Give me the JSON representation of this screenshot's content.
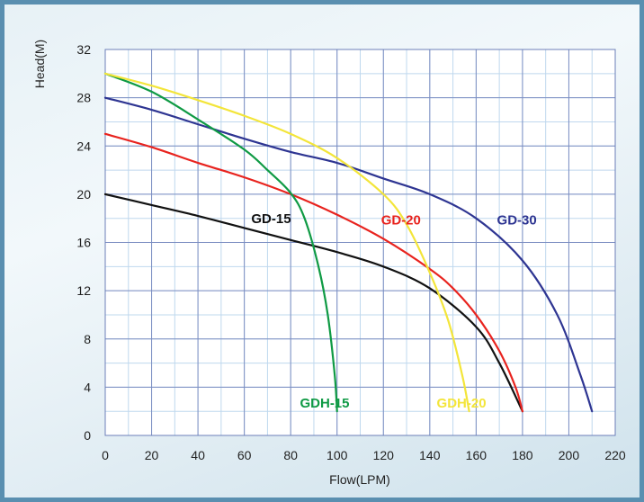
{
  "chart_data": {
    "type": "line",
    "title": "",
    "xlabel": "Flow(LPM)",
    "ylabel": "Head(M)",
    "xlim": [
      0,
      220
    ],
    "ylim": [
      0,
      32
    ],
    "x_ticks": [
      0,
      20,
      40,
      60,
      80,
      100,
      120,
      140,
      160,
      180,
      200,
      220
    ],
    "y_ticks": [
      0,
      4,
      8,
      12,
      16,
      20,
      24,
      28,
      32
    ],
    "x_minor_step": 10,
    "y_minor_step": 2,
    "grid": true,
    "legend": "labels on curves",
    "series": [
      {
        "name": "GD-15",
        "color": "#111111",
        "points": [
          [
            0,
            20
          ],
          [
            20,
            19.1
          ],
          [
            40,
            18.2
          ],
          [
            60,
            17.2
          ],
          [
            80,
            16.2
          ],
          [
            100,
            15.2
          ],
          [
            120,
            14
          ],
          [
            140,
            12.2
          ],
          [
            160,
            9
          ],
          [
            170,
            6
          ],
          [
            180,
            2
          ]
        ]
      },
      {
        "name": "GD-20",
        "color": "#e8231e",
        "points": [
          [
            0,
            25
          ],
          [
            20,
            23.9
          ],
          [
            40,
            22.6
          ],
          [
            60,
            21.4
          ],
          [
            80,
            20
          ],
          [
            100,
            18.3
          ],
          [
            120,
            16.3
          ],
          [
            140,
            13.8
          ],
          [
            150,
            12.2
          ],
          [
            160,
            10
          ],
          [
            170,
            7
          ],
          [
            177,
            4
          ],
          [
            180,
            2
          ]
        ]
      },
      {
        "name": "GD-30",
        "color": "#2e3592",
        "points": [
          [
            0,
            28
          ],
          [
            20,
            27
          ],
          [
            40,
            25.8
          ],
          [
            60,
            24.6
          ],
          [
            80,
            23.5
          ],
          [
            100,
            22.6
          ],
          [
            120,
            21.3
          ],
          [
            140,
            20
          ],
          [
            160,
            18
          ],
          [
            180,
            14.5
          ],
          [
            195,
            10
          ],
          [
            205,
            5
          ],
          [
            210,
            2
          ]
        ]
      },
      {
        "name": "GDH-15",
        "color": "#0f9a44",
        "points": [
          [
            0,
            30
          ],
          [
            20,
            28.5
          ],
          [
            40,
            26.2
          ],
          [
            60,
            23.7
          ],
          [
            70,
            22
          ],
          [
            80,
            20.1
          ],
          [
            86,
            18
          ],
          [
            92,
            14
          ],
          [
            96,
            10
          ],
          [
            99,
            5
          ],
          [
            100,
            2
          ]
        ]
      },
      {
        "name": "GDH-20",
        "color": "#f3e53a",
        "points": [
          [
            0,
            30
          ],
          [
            20,
            29
          ],
          [
            40,
            27.8
          ],
          [
            60,
            26.5
          ],
          [
            80,
            25
          ],
          [
            100,
            23
          ],
          [
            120,
            20
          ],
          [
            130,
            17.5
          ],
          [
            140,
            13.5
          ],
          [
            148,
            9.5
          ],
          [
            154,
            5
          ],
          [
            157,
            2
          ]
        ]
      }
    ],
    "labels": [
      {
        "text": "GD-15",
        "x": 63,
        "y": 17.6,
        "color": "#111111"
      },
      {
        "text": "GD-20",
        "x": 119,
        "y": 17.5,
        "color": "#e8231e"
      },
      {
        "text": "GD-30",
        "x": 169,
        "y": 17.5,
        "color": "#2e3592"
      },
      {
        "text": "GDH-15",
        "x": 84,
        "y": 2.3,
        "color": "#0f9a44"
      },
      {
        "text": "GDH-20",
        "x": 143,
        "y": 2.3,
        "color": "#f3e53a"
      }
    ]
  }
}
